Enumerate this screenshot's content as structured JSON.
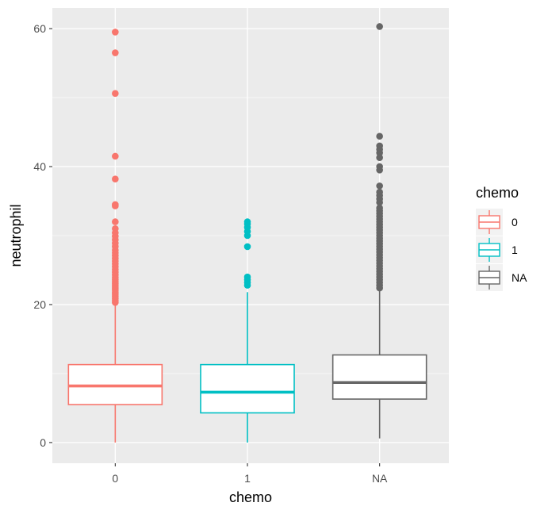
{
  "chart_data": {
    "type": "boxplot",
    "xlabel": "chemo",
    "ylabel": "neutrophil",
    "categories": [
      "0",
      "1",
      "NA"
    ],
    "ylim": [
      -3,
      63
    ],
    "yticks": [
      0,
      20,
      40,
      60
    ],
    "grid": true,
    "legend": {
      "title": "chemo",
      "position": "right",
      "entries": [
        "0",
        "1",
        "NA"
      ]
    },
    "colors": {
      "0": "#F8766D",
      "1": "#00BFC4",
      "NA": "#666666"
    },
    "panel_background": "#EBEBEB",
    "series": [
      {
        "category": "0",
        "min": 0.0,
        "q1": 5.5,
        "median": 8.2,
        "q3": 11.3,
        "whisker_high": 20.0,
        "outliers": [
          20.3,
          20.6,
          20.9,
          21.2,
          21.5,
          21.8,
          22.1,
          22.4,
          22.7,
          23.0,
          23.3,
          23.6,
          23.9,
          24.3,
          24.7,
          25.1,
          25.5,
          25.9,
          26.3,
          26.7,
          27.1,
          27.5,
          27.9,
          28.4,
          28.9,
          29.4,
          29.9,
          30.4,
          31.0,
          32.0,
          34.3,
          34.5,
          38.2,
          41.5,
          50.6,
          56.5,
          59.5
        ]
      },
      {
        "category": "1",
        "min": 0.0,
        "q1": 4.3,
        "median": 7.3,
        "q3": 11.3,
        "whisker_high": 21.8,
        "outliers": [
          22.8,
          23.2,
          23.6,
          24.0,
          28.4,
          30.0,
          30.6,
          31.2,
          31.7,
          32.0
        ]
      },
      {
        "category": "NA",
        "min": 0.6,
        "q1": 6.3,
        "median": 8.7,
        "q3": 12.7,
        "whisker_high": 22.0,
        "outliers": [
          22.4,
          22.8,
          23.2,
          23.6,
          24.0,
          24.4,
          24.8,
          25.2,
          25.6,
          26.0,
          26.4,
          26.8,
          27.2,
          27.6,
          28.0,
          28.4,
          28.8,
          29.2,
          29.6,
          30.0,
          30.4,
          30.8,
          31.2,
          31.6,
          32.0,
          32.4,
          32.8,
          33.2,
          33.6,
          34.0,
          34.8,
          35.3,
          35.8,
          36.3,
          37.2,
          39.5,
          40.0,
          41.3,
          42.0,
          42.5,
          43.0,
          44.4,
          60.3
        ]
      }
    ]
  }
}
